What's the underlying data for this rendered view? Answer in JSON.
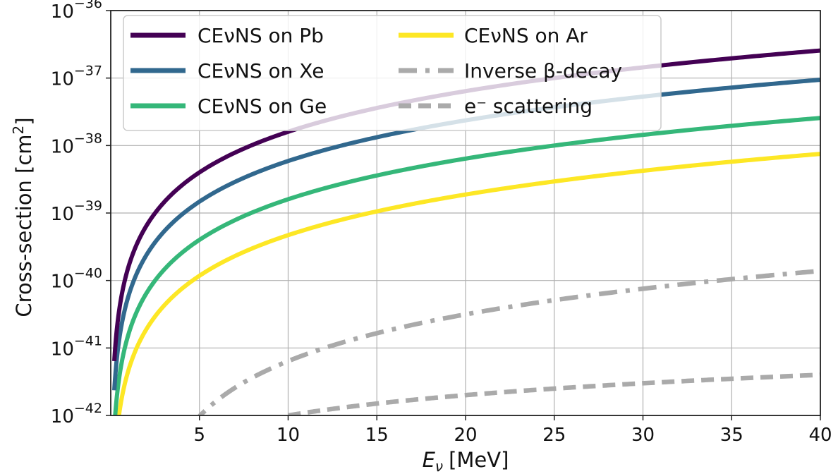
{
  "chart_data": {
    "type": "line",
    "xlabel_symbol": "E",
    "xlabel_sub": "ν",
    "xlabel_unit": "[MeV]",
    "ylabel": "Cross-section [cm",
    "ylabel_sup": "2",
    "ylabel_end": "]",
    "xlim": [
      0,
      40
    ],
    "ylim": [
      1e-42,
      1e-36
    ],
    "yscale": "log",
    "grid": true,
    "legend_position": "top-left",
    "x_ticks": [
      5,
      10,
      15,
      20,
      25,
      30,
      35,
      40
    ],
    "x_tick_labels": [
      "5",
      "10",
      "15",
      "20",
      "25",
      "30",
      "35",
      "40"
    ],
    "y_ticks_exp": [
      -42,
      -41,
      -40,
      -39,
      -38,
      -37,
      -36
    ],
    "y_tick_base": "10",
    "y_tick_exp_labels": [
      "−42",
      "−41",
      "−40",
      "−39",
      "−38",
      "−37",
      "−36"
    ],
    "series": [
      {
        "name": "CEνNS on Pb",
        "color": "#440154",
        "style": "solid",
        "curve": "power",
        "coef": 1.6e-40,
        "power": 2,
        "xmin": 0.2
      },
      {
        "name": "CEνNS on Xe",
        "color": "#31688e",
        "style": "solid",
        "curve": "power",
        "coef": 5.9e-41,
        "power": 2,
        "xmin": 0.2
      },
      {
        "name": "CEνNS on Ge",
        "color": "#35b779",
        "style": "solid",
        "curve": "power",
        "coef": 1.6e-41,
        "power": 2,
        "xmin": 0.2
      },
      {
        "name": "CEνNS on Ar",
        "color": "#fde725",
        "style": "solid",
        "curve": "power",
        "coef": 4.7e-42,
        "power": 2,
        "xmin": 0.2
      },
      {
        "name": "Inverse β-decay",
        "color": "#aaaaaa",
        "style": "dashdot",
        "curve": "ibd",
        "coef": 9.5e-44,
        "threshold": 1.8,
        "xmin": 4.6
      },
      {
        "name": "e⁻ scattering",
        "color": "#aaaaaa",
        "style": "dashed",
        "curve": "power",
        "coef": 1e-43,
        "power": 1,
        "xmin": 10
      }
    ]
  }
}
